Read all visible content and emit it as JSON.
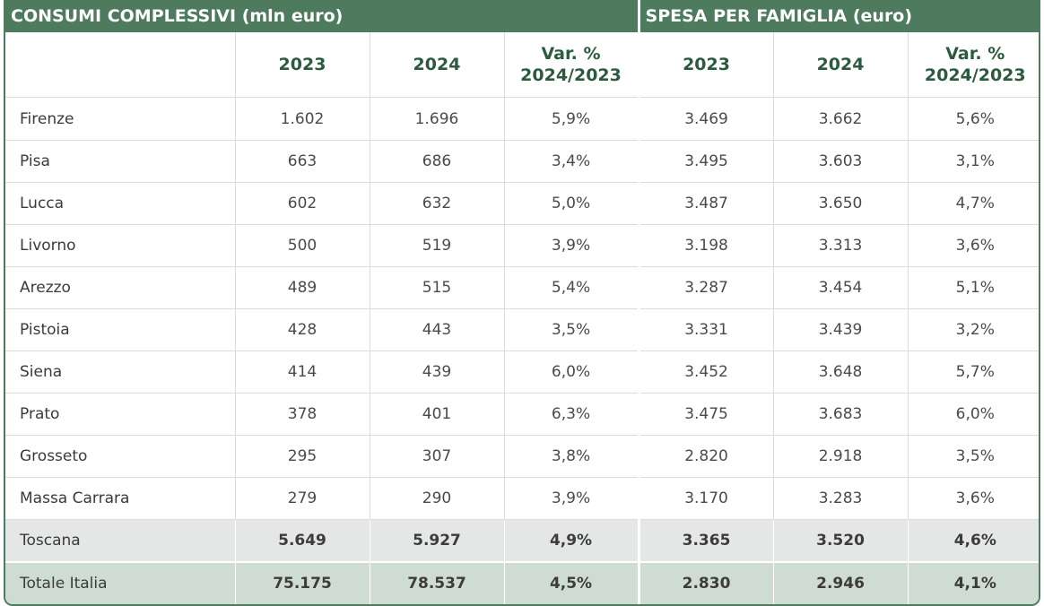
{
  "groups": {
    "consumi": "CONSUMI COMPLESSIVI (mln euro)",
    "spesa": "SPESA PER FAMIGLIA (euro)"
  },
  "columns": {
    "y2023": "2023",
    "y2024": "2024",
    "var_line1": "Var. %",
    "var_line2": "2024/2023"
  },
  "rows": [
    {
      "name": "Firenze",
      "c2023": "1.602",
      "c2024": "1.696",
      "cvar": "5,9%",
      "s2023": "3.469",
      "s2024": "3.662",
      "svar": "5,6%"
    },
    {
      "name": "Pisa",
      "c2023": "663",
      "c2024": "686",
      "cvar": "3,4%",
      "s2023": "3.495",
      "s2024": "3.603",
      "svar": "3,1%"
    },
    {
      "name": "Lucca",
      "c2023": "602",
      "c2024": "632",
      "cvar": "5,0%",
      "s2023": "3.487",
      "s2024": "3.650",
      "svar": "4,7%"
    },
    {
      "name": "Livorno",
      "c2023": "500",
      "c2024": "519",
      "cvar": "3,9%",
      "s2023": "3.198",
      "s2024": "3.313",
      "svar": "3,6%"
    },
    {
      "name": "Arezzo",
      "c2023": "489",
      "c2024": "515",
      "cvar": "5,4%",
      "s2023": "3.287",
      "s2024": "3.454",
      "svar": "5,1%"
    },
    {
      "name": "Pistoia",
      "c2023": "428",
      "c2024": "443",
      "cvar": "3,5%",
      "s2023": "3.331",
      "s2024": "3.439",
      "svar": "3,2%"
    },
    {
      "name": "Siena",
      "c2023": "414",
      "c2024": "439",
      "cvar": "6,0%",
      "s2023": "3.452",
      "s2024": "3.648",
      "svar": "5,7%"
    },
    {
      "name": "Prato",
      "c2023": "378",
      "c2024": "401",
      "cvar": "6,3%",
      "s2023": "3.475",
      "s2024": "3.683",
      "svar": "6,0%"
    },
    {
      "name": "Grosseto",
      "c2023": "295",
      "c2024": "307",
      "cvar": "3,8%",
      "s2023": "2.820",
      "s2024": "2.918",
      "svar": "3,5%"
    },
    {
      "name": "Massa Carrara",
      "c2023": "279",
      "c2024": "290",
      "cvar": "3,9%",
      "s2023": "3.170",
      "s2024": "3.283",
      "svar": "3,6%"
    }
  ],
  "toscana": {
    "name": "Toscana",
    "c2023": "5.649",
    "c2024": "5.927",
    "cvar": "4,9%",
    "s2023": "3.365",
    "s2024": "3.520",
    "svar": "4,6%"
  },
  "italia": {
    "name": "Totale Italia",
    "c2023": "75.175",
    "c2024": "78.537",
    "cvar": "4,5%",
    "s2023": "2.830",
    "s2024": "2.946",
    "svar": "4,1%"
  }
}
